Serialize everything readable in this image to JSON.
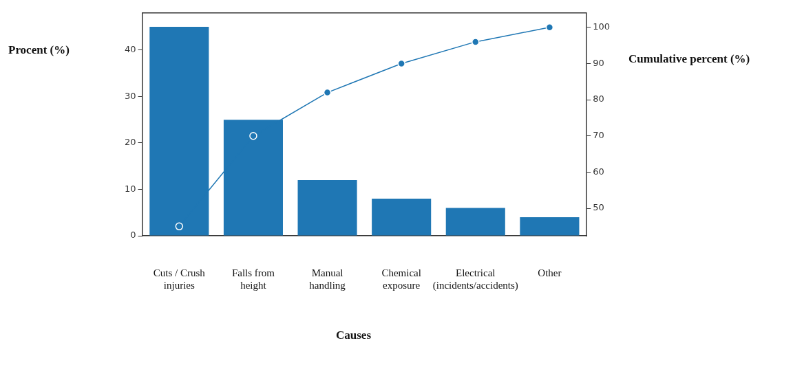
{
  "chart_data": {
    "type": "bar",
    "ylabel": "Procent (%)",
    "y2label": "Cumulative percent (%)",
    "xlabel": "Causes",
    "categories": [
      "Cuts / Crush injuries",
      "Falls from height",
      "Manual handling",
      "Chemical exposure",
      "Electrical (incidents/accidents)",
      "Other"
    ],
    "series": [
      {
        "color": "#1f77b4",
        "values": [
          45,
          25,
          12,
          8,
          6,
          4
        ]
      },
      {
        "type": "line",
        "axis": "y2",
        "color": "#1f77b4",
        "marker": "circle",
        "values": [
          45,
          70,
          82,
          90,
          96,
          100
        ]
      }
    ],
    "ylim": [
      0,
      48
    ],
    "yticks": [
      0,
      10,
      20,
      30,
      40
    ],
    "y2lim": [
      42.4,
      104
    ],
    "y2ticks": [
      50,
      60,
      70,
      80,
      90,
      100
    ],
    "grid": false,
    "legend": false
  }
}
